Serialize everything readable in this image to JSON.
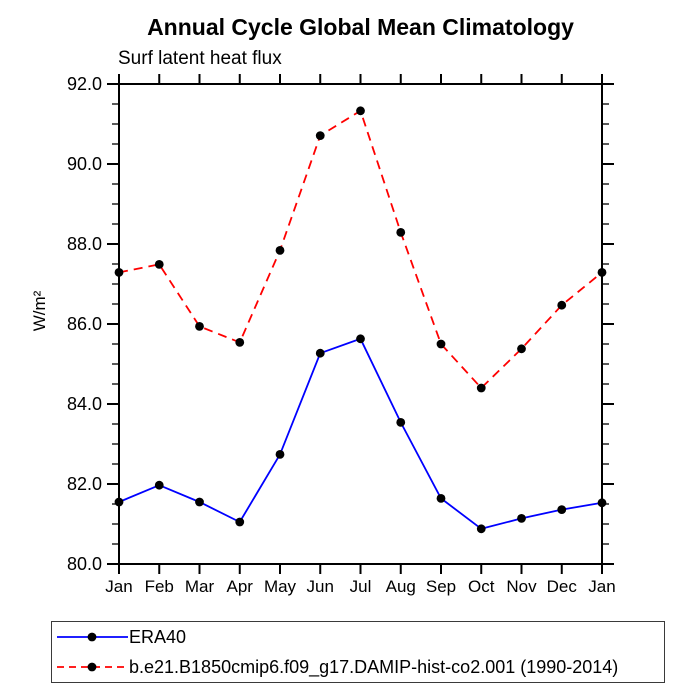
{
  "chart_data": {
    "type": "line",
    "title": "Annual Cycle Global Mean Climatology",
    "subtitle": "Surf latent heat flux",
    "ylabel": "W/m²",
    "xlabel": "",
    "categories": [
      "Jan",
      "Feb",
      "Mar",
      "Apr",
      "May",
      "Jun",
      "Jul",
      "Aug",
      "Sep",
      "Oct",
      "Nov",
      "Dec",
      "Jan"
    ],
    "series": [
      {
        "name": "ERA40",
        "color": "#0000ff",
        "line_style": "solid",
        "marker": "filled-circle",
        "marker_color": "#000000",
        "values": [
          81.55,
          81.97,
          81.55,
          81.05,
          82.74,
          85.27,
          85.63,
          83.54,
          81.64,
          80.88,
          81.14,
          81.36,
          81.53
        ]
      },
      {
        "name": "b.e21.B1850cmip6.f09_g17.DAMIP-hist-co2.001 (1990-2014)",
        "color": "#ff0000",
        "line_style": "dashed",
        "marker": "filled-circle",
        "marker_color": "#000000",
        "values": [
          87.29,
          87.49,
          85.94,
          85.54,
          87.84,
          90.71,
          91.33,
          88.29,
          85.5,
          84.4,
          85.38,
          86.47,
          87.29
        ]
      }
    ],
    "ylim": [
      80.0,
      92.0
    ],
    "ytick_step": 2.0,
    "yminor_step": 0.5,
    "ytick_labels": [
      "80.0",
      "82.0",
      "84.0",
      "86.0",
      "88.0",
      "90.0",
      "92.0"
    ],
    "grid": false,
    "frame": "all-four-sides",
    "legend_position": "bottom-left-box"
  }
}
